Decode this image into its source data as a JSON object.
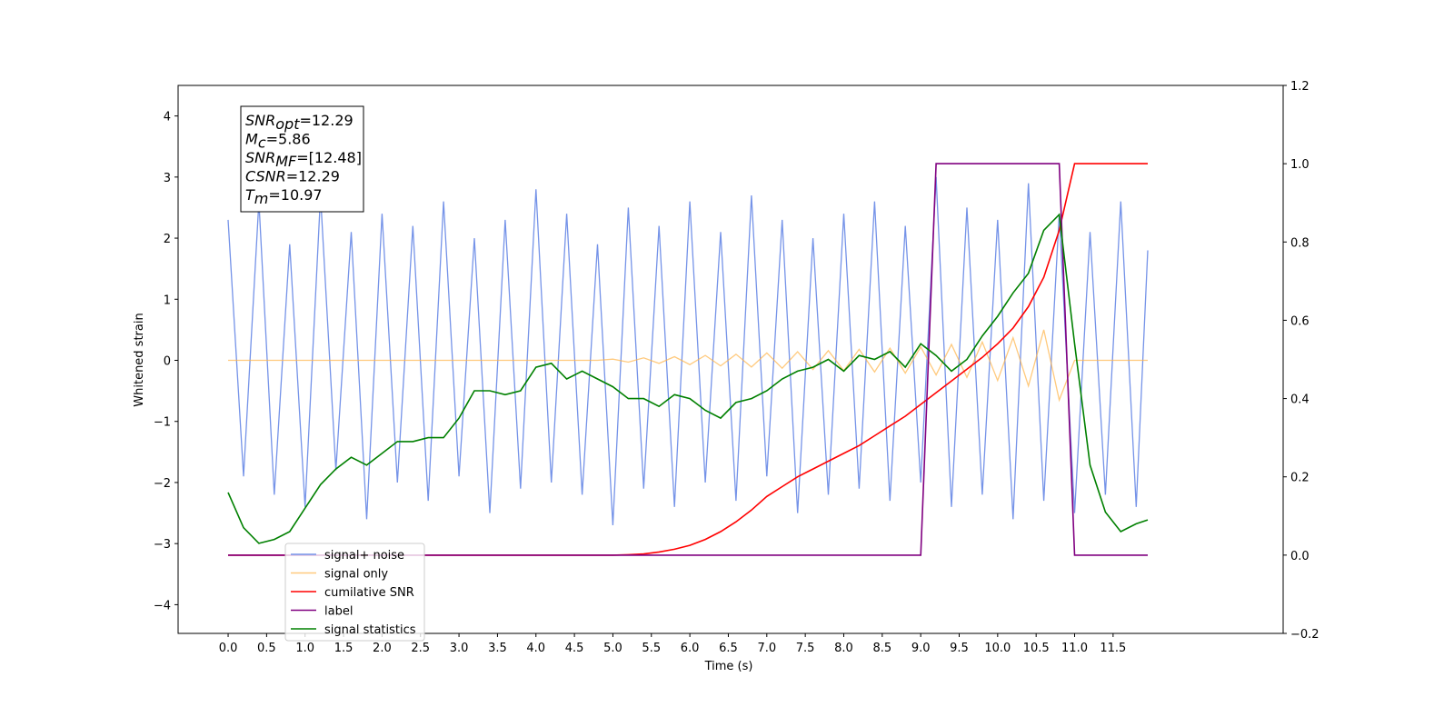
{
  "chart_data": {
    "type": "line",
    "xlabel": "Time (s)",
    "ylabel": "Whitened strain",
    "xlim": [
      -0.65,
      13.71
    ],
    "ylim": [
      -4.47,
      4.5
    ],
    "y2lim": [
      -0.2,
      1.2
    ],
    "xticks": [
      {
        "value": 0,
        "label": "0.0"
      },
      {
        "value": 0.5,
        "label": "0.5"
      },
      {
        "value": 1,
        "label": "1.0"
      },
      {
        "value": 1.5,
        "label": "1.5"
      },
      {
        "value": 2,
        "label": "2.0"
      },
      {
        "value": 2.5,
        "label": "2.5"
      },
      {
        "value": 3,
        "label": "3.0"
      },
      {
        "value": 3.5,
        "label": "3.5"
      },
      {
        "value": 4,
        "label": "4.0"
      },
      {
        "value": 4.5,
        "label": "4.5"
      },
      {
        "value": 5,
        "label": "5.0"
      },
      {
        "value": 5.5,
        "label": "5.5"
      },
      {
        "value": 6,
        "label": "6.0"
      },
      {
        "value": 6.5,
        "label": "6.5"
      },
      {
        "value": 7,
        "label": "7.0"
      },
      {
        "value": 7.5,
        "label": "7.5"
      },
      {
        "value": 8,
        "label": "8.0"
      },
      {
        "value": 8.5,
        "label": "8.5"
      },
      {
        "value": 9,
        "label": "9.0"
      },
      {
        "value": 9.5,
        "label": "9.5"
      },
      {
        "value": 10,
        "label": "10.0"
      },
      {
        "value": 10.5,
        "label": "10.5"
      },
      {
        "value": 11,
        "label": "11.0"
      },
      {
        "value": 11.5,
        "label": "11.5"
      }
    ],
    "yticks": [
      {
        "value": -4,
        "label": "−4"
      },
      {
        "value": -3,
        "label": "−3"
      },
      {
        "value": -2,
        "label": "−2"
      },
      {
        "value": -1,
        "label": "−1"
      },
      0,
      1,
      2,
      3,
      4
    ],
    "y2ticks": [
      {
        "value": -0.2,
        "label": "−0.2"
      },
      {
        "value": 0,
        "label": "0.0"
      },
      {
        "value": 0.2,
        "label": "0.2"
      },
      {
        "value": 0.4,
        "label": "0.4"
      },
      {
        "value": 0.6,
        "label": "0.6"
      },
      {
        "value": 0.8,
        "label": "0.8"
      },
      {
        "value": 1,
        "label": "1.0"
      },
      {
        "value": 1.2,
        "label": "1.2"
      }
    ],
    "annotation": [
      {
        "main": "SNR",
        "sub": "opt",
        "rest": "=12.29"
      },
      {
        "main": "M",
        "sub": "c",
        "rest": "=5.86"
      },
      {
        "main": "SNR",
        "sub": "MF",
        "rest": "=[12.48]"
      },
      {
        "main": "CSNR",
        "sub": null,
        "rest": "=12.29"
      },
      {
        "main": "T",
        "sub": "m",
        "rest": "=10.97"
      }
    ],
    "x": [
      0,
      0.2,
      0.4,
      0.6,
      0.8,
      1.0,
      1.2,
      1.4,
      1.6,
      1.8,
      2.0,
      2.2,
      2.4,
      2.6,
      2.8,
      3.0,
      3.2,
      3.4,
      3.6,
      3.8,
      4.0,
      4.2,
      4.4,
      4.6,
      4.8,
      5.0,
      5.2,
      5.4,
      5.6,
      5.8,
      6.0,
      6.2,
      6.4,
      6.6,
      6.8,
      7.0,
      7.2,
      7.4,
      7.6,
      7.8,
      8.0,
      8.2,
      8.4,
      8.6,
      8.8,
      9.0,
      9.2,
      9.4,
      9.6,
      9.8,
      10.0,
      10.2,
      10.4,
      10.6,
      10.8,
      11.0,
      11.2,
      11.4,
      11.6,
      11.8,
      11.95
    ],
    "series": [
      {
        "name": "signal+ noise",
        "color": "#7593e8",
        "values": [
          2.3,
          -1.9,
          2.6,
          -2.2,
          1.9,
          -2.4,
          2.7,
          -1.8,
          2.1,
          -2.6,
          2.4,
          -2.0,
          2.2,
          -2.3,
          2.6,
          -1.9,
          2.0,
          -2.5,
          2.3,
          -2.1,
          2.8,
          -2.0,
          2.4,
          -2.2,
          1.9,
          -2.7,
          2.5,
          -2.1,
          2.2,
          -2.4,
          2.6,
          -2.0,
          2.1,
          -2.3,
          2.7,
          -1.9,
          2.3,
          -2.5,
          2.0,
          -2.2,
          2.4,
          -2.1,
          2.6,
          -2.3,
          2.2,
          -2.0,
          3.0,
          -2.4,
          2.5,
          -2.2,
          2.3,
          -2.6,
          2.9,
          -2.3,
          2.4,
          -2.5,
          2.1,
          -2.2,
          2.6,
          -2.4,
          1.8
        ]
      },
      {
        "name": "signal only",
        "color": "#ffb347",
        "values": [
          0,
          0,
          0,
          0,
          0,
          0,
          0,
          0,
          0,
          0,
          0,
          0,
          0,
          0,
          0,
          0,
          0,
          0,
          0,
          0,
          0,
          0,
          0,
          0,
          0,
          0.02,
          -0.03,
          0.04,
          -0.05,
          0.06,
          -0.07,
          0.08,
          -0.09,
          0.1,
          -0.11,
          0.12,
          -0.13,
          0.14,
          -0.15,
          0.16,
          -0.17,
          0.18,
          -0.19,
          0.2,
          -0.21,
          0.22,
          -0.24,
          0.26,
          -0.28,
          0.3,
          -0.33,
          0.37,
          -0.42,
          0.5,
          -0.65,
          0,
          0,
          0,
          0,
          0,
          0
        ]
      },
      {
        "name": "cumilative SNR",
        "color": "#ff0000",
        "axis": "y2",
        "values": [
          0,
          0,
          0,
          0,
          0,
          0,
          0,
          0,
          0,
          0,
          0,
          0,
          0,
          0,
          0,
          0,
          0,
          0,
          0,
          0,
          0,
          0,
          0,
          0,
          0,
          0,
          0.001,
          0.003,
          0.008,
          0.015,
          0.025,
          0.04,
          0.06,
          0.085,
          0.115,
          0.15,
          0.175,
          0.2,
          0.22,
          0.24,
          0.26,
          0.28,
          0.305,
          0.33,
          0.355,
          0.385,
          0.415,
          0.445,
          0.475,
          0.505,
          0.54,
          0.58,
          0.635,
          0.71,
          0.83,
          1.0,
          1.0,
          1.0,
          1.0,
          1.0,
          1.0
        ]
      },
      {
        "name": "label",
        "color": "#800080",
        "axis": "y2",
        "values": [
          0,
          0,
          0,
          0,
          0,
          0,
          0,
          0,
          0,
          0,
          0,
          0,
          0,
          0,
          0,
          0,
          0,
          0,
          0,
          0,
          0,
          0,
          0,
          0,
          0,
          0,
          0,
          0,
          0,
          0,
          0,
          0,
          0,
          0,
          0,
          0,
          0,
          0,
          0,
          0,
          0,
          0,
          0,
          0,
          0,
          0,
          1,
          1,
          1,
          1,
          1,
          1,
          1,
          1,
          1,
          0,
          0,
          0,
          0,
          0,
          0
        ]
      },
      {
        "name": "signal statistics",
        "color": "#008000",
        "axis": "y2",
        "values": [
          0.16,
          0.07,
          0.03,
          0.04,
          0.06,
          0.12,
          0.18,
          0.22,
          0.25,
          0.23,
          0.26,
          0.29,
          0.29,
          0.3,
          0.3,
          0.35,
          0.42,
          0.42,
          0.41,
          0.42,
          0.48,
          0.49,
          0.45,
          0.47,
          0.45,
          0.43,
          0.4,
          0.4,
          0.38,
          0.41,
          0.4,
          0.37,
          0.35,
          0.39,
          0.4,
          0.42,
          0.45,
          0.47,
          0.48,
          0.5,
          0.47,
          0.51,
          0.5,
          0.52,
          0.48,
          0.54,
          0.51,
          0.47,
          0.5,
          0.56,
          0.61,
          0.67,
          0.72,
          0.83,
          0.87,
          0.54,
          0.23,
          0.11,
          0.06,
          0.08,
          0.09
        ]
      }
    ]
  }
}
